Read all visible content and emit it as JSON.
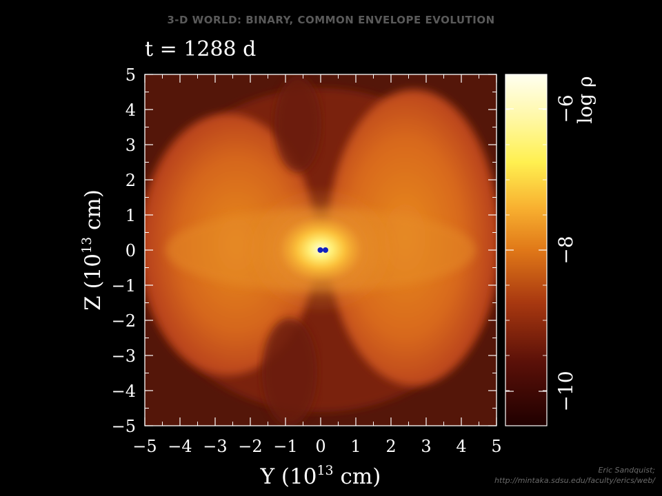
{
  "header": {
    "title": "3-D WORLD: BINARY, COMMON ENVELOPE EVOLUTION",
    "time_label": "t = 1288 d"
  },
  "plot": {
    "x_axis": {
      "label_prefix": "Y (10",
      "label_exp": "13",
      "label_suffix": " cm)",
      "ticks": [
        "−5",
        "−4",
        "−3",
        "−2",
        "−1",
        "0",
        "1",
        "2",
        "3",
        "4",
        "5"
      ]
    },
    "y_axis": {
      "label_prefix": "Z (10",
      "label_exp": "13",
      "label_suffix": " cm)",
      "ticks": [
        "5",
        "4",
        "3",
        "2",
        "1",
        "0",
        "−1",
        "−2",
        "−3",
        "−4",
        "−5"
      ]
    },
    "colorbar": {
      "label": "log ρ",
      "ticks": [
        "−6",
        "−8",
        "−10"
      ]
    },
    "colors": {
      "background": "#000000",
      "cmap_low": "#200000",
      "cmap_mid": "#e07818",
      "cmap_high": "#fffff0",
      "core_points": "#1020c0"
    }
  },
  "credit": {
    "line1": "Eric Sandquist;",
    "line2": "http://mintaka.sdsu.edu/faculty/erics/web/"
  }
}
